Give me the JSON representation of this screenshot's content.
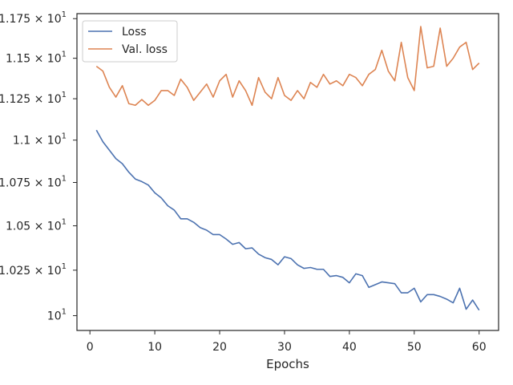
{
  "chart_data": {
    "type": "line",
    "xlabel": "Epochs",
    "ylabel": "",
    "xlim": [
      -2,
      63
    ],
    "ylim": [
      9.92,
      11.782
    ],
    "log_scale_y": true,
    "legend_position": "upper-left",
    "x_ticks": [
      0,
      10,
      20,
      30,
      40,
      50,
      60
    ],
    "y_ticks": [
      {
        "value": 10.0,
        "base": "10",
        "exp": "1"
      },
      {
        "value": 10.25,
        "base": "1.025 × 10",
        "exp": "1"
      },
      {
        "value": 10.5,
        "base": "1.05 × 10",
        "exp": "1"
      },
      {
        "value": 10.75,
        "base": "1.075 × 10",
        "exp": "1"
      },
      {
        "value": 11.0,
        "base": "1.1 × 10",
        "exp": "1"
      },
      {
        "value": 11.25,
        "base": "1.125 × 10",
        "exp": "1"
      },
      {
        "value": 11.5,
        "base": "1.15 × 10",
        "exp": "1"
      },
      {
        "value": 11.75,
        "base": "1.175 × 10",
        "exp": "1"
      }
    ],
    "x": [
      1,
      2,
      3,
      4,
      5,
      6,
      7,
      8,
      9,
      10,
      11,
      12,
      13,
      14,
      15,
      16,
      17,
      18,
      19,
      20,
      21,
      22,
      23,
      24,
      25,
      26,
      27,
      28,
      29,
      30,
      31,
      32,
      33,
      34,
      35,
      36,
      37,
      38,
      39,
      40,
      41,
      42,
      43,
      44,
      45,
      46,
      47,
      48,
      49,
      50,
      51,
      52,
      53,
      54,
      55,
      56,
      57,
      58,
      59,
      60
    ],
    "series": [
      {
        "name": "Loss",
        "color": "#4c72b0",
        "values": [
          11.06,
          10.99,
          10.94,
          10.89,
          10.86,
          10.81,
          10.77,
          10.755,
          10.735,
          10.69,
          10.66,
          10.615,
          10.59,
          10.54,
          10.54,
          10.52,
          10.49,
          10.475,
          10.45,
          10.45,
          10.425,
          10.395,
          10.405,
          10.37,
          10.375,
          10.34,
          10.32,
          10.31,
          10.28,
          10.325,
          10.315,
          10.28,
          10.26,
          10.265,
          10.255,
          10.255,
          10.215,
          10.22,
          10.21,
          10.18,
          10.23,
          10.22,
          10.155,
          10.17,
          10.185,
          10.18,
          10.175,
          10.125,
          10.125,
          10.15,
          10.075,
          10.115,
          10.115,
          10.105,
          10.09,
          10.07,
          10.15,
          10.035,
          10.085,
          10.03
        ]
      },
      {
        "name": "Val. loss",
        "color": "#dd8452",
        "values": [
          11.45,
          11.42,
          11.32,
          11.26,
          11.33,
          11.22,
          11.21,
          11.245,
          11.21,
          11.24,
          11.3,
          11.3,
          11.27,
          11.37,
          11.32,
          11.24,
          11.29,
          11.34,
          11.26,
          11.36,
          11.4,
          11.26,
          11.36,
          11.3,
          11.21,
          11.38,
          11.29,
          11.25,
          11.38,
          11.27,
          11.24,
          11.3,
          11.25,
          11.35,
          11.32,
          11.4,
          11.34,
          11.36,
          11.33,
          11.4,
          11.38,
          11.33,
          11.4,
          11.43,
          11.55,
          11.42,
          11.36,
          11.6,
          11.38,
          11.3,
          11.7,
          11.44,
          11.45,
          11.69,
          11.45,
          11.5,
          11.57,
          11.6,
          11.43,
          11.47
        ]
      }
    ]
  }
}
